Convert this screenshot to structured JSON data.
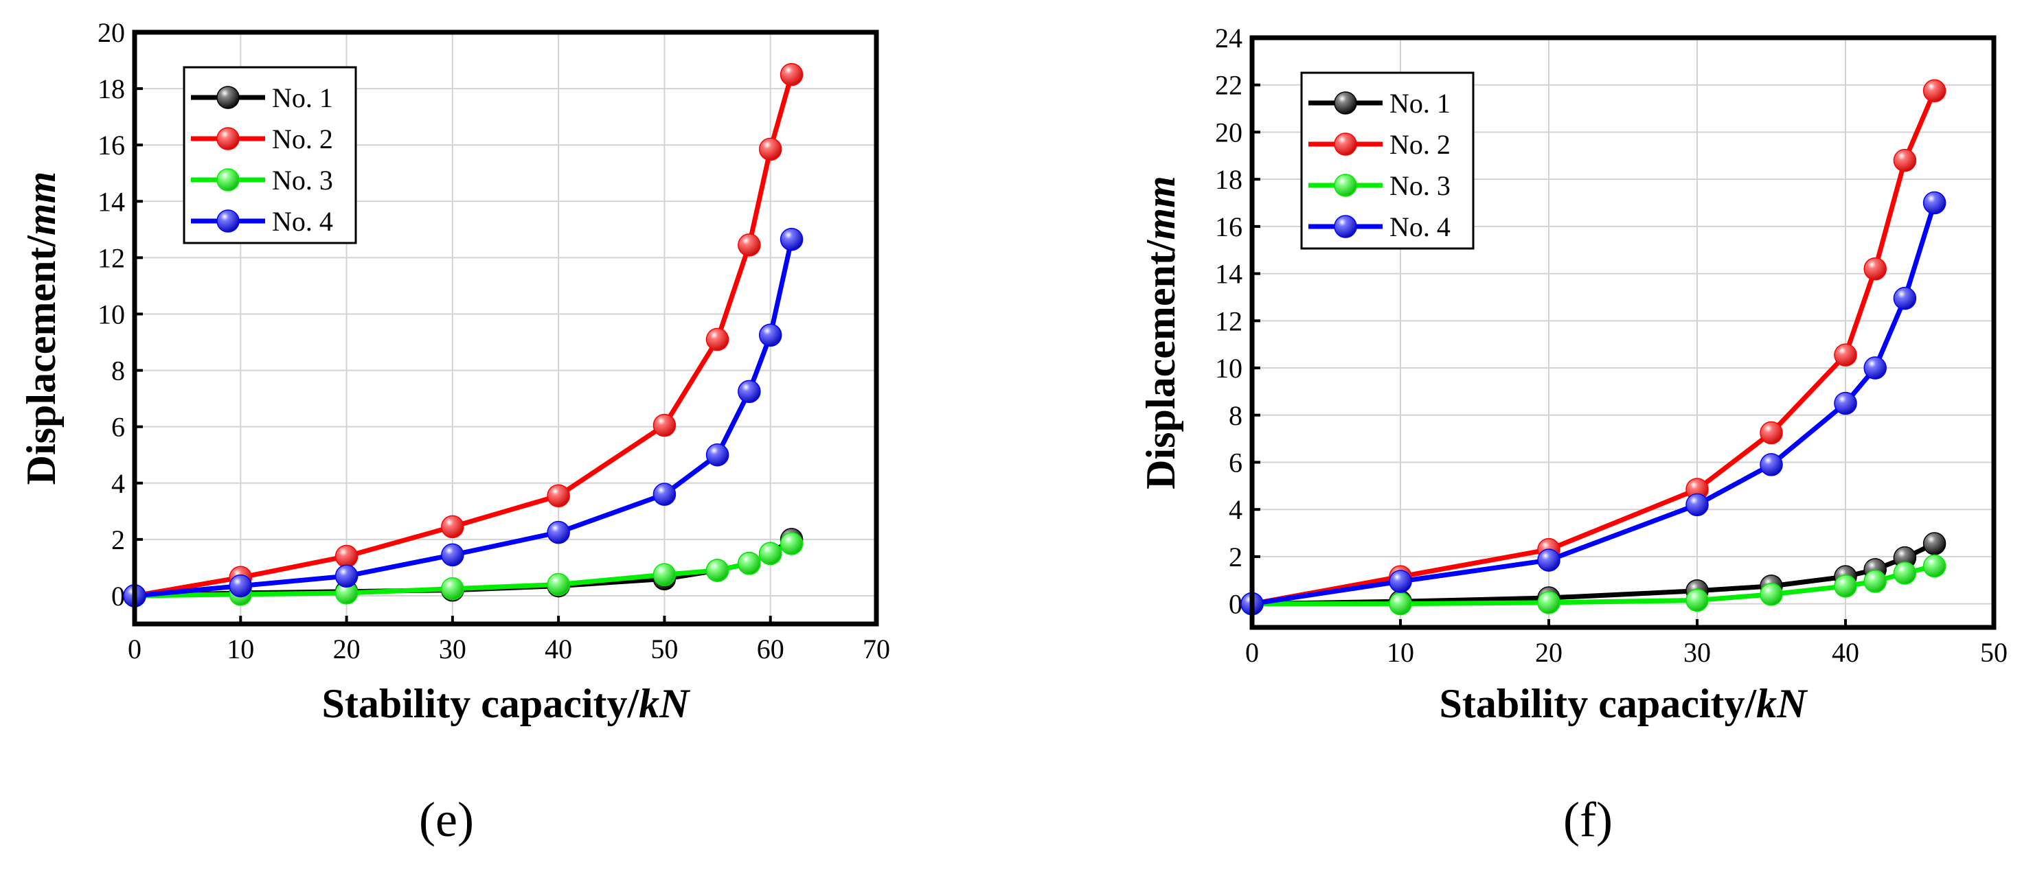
{
  "colors": {
    "No. 1": "#000000",
    "No. 2": "#ff0000",
    "No. 3": "#00ee00",
    "No. 4": "#0000ff"
  },
  "chart_data": [
    {
      "type": "line",
      "panel_label": "(e)",
      "xlabel_prefix": "Stability capacity/",
      "xlabel_unit": "kN",
      "ylabel_prefix": "Displacement/",
      "ylabel_unit": "mm",
      "xlim": [
        0,
        70
      ],
      "ylim": [
        -1,
        20
      ],
      "xticks": [
        0,
        10,
        20,
        30,
        40,
        50,
        60,
        70
      ],
      "yticks": [
        0,
        2,
        4,
        6,
        8,
        10,
        12,
        14,
        16,
        18,
        20
      ],
      "grid": true,
      "legend_position": "top-left",
      "series": [
        {
          "name": "No. 1",
          "x": [
            0,
            10,
            20,
            30,
            40,
            50,
            55,
            58,
            60,
            62
          ],
          "y": [
            0,
            0.1,
            0.15,
            0.2,
            0.35,
            0.6,
            0.9,
            1.15,
            1.5,
            2.0
          ]
        },
        {
          "name": "No. 2",
          "x": [
            0,
            10,
            20,
            30,
            40,
            50,
            55,
            58,
            60,
            62
          ],
          "y": [
            0,
            0.65,
            1.4,
            2.45,
            3.55,
            6.05,
            9.1,
            12.45,
            15.85,
            18.5
          ]
        },
        {
          "name": "No. 3",
          "x": [
            0,
            10,
            20,
            30,
            40,
            50,
            55,
            58,
            60,
            62
          ],
          "y": [
            0,
            0.05,
            0.1,
            0.25,
            0.4,
            0.75,
            0.9,
            1.15,
            1.5,
            1.85
          ]
        },
        {
          "name": "No. 4",
          "x": [
            0,
            10,
            20,
            30,
            40,
            50,
            55,
            58,
            60,
            62
          ],
          "y": [
            0,
            0.35,
            0.7,
            1.45,
            2.25,
            3.6,
            5.0,
            7.25,
            9.25,
            12.65
          ]
        }
      ]
    },
    {
      "type": "line",
      "panel_label": "(f)",
      "xlabel_prefix": "Stability capacity/",
      "xlabel_unit": "kN",
      "ylabel_prefix": "Displacement/",
      "ylabel_unit": "mm",
      "xlim": [
        0,
        50
      ],
      "ylim": [
        -1,
        24
      ],
      "xticks": [
        0,
        10,
        20,
        30,
        40,
        50
      ],
      "yticks": [
        0,
        2,
        4,
        6,
        8,
        10,
        12,
        14,
        16,
        18,
        20,
        22,
        24
      ],
      "grid": true,
      "legend_position": "top-left",
      "series": [
        {
          "name": "No. 1",
          "x": [
            0,
            10,
            20,
            30,
            35,
            40,
            42,
            44,
            46
          ],
          "y": [
            0,
            0.1,
            0.25,
            0.55,
            0.75,
            1.15,
            1.45,
            1.95,
            2.55
          ]
        },
        {
          "name": "No. 2",
          "x": [
            0,
            10,
            20,
            30,
            35,
            40,
            42,
            44,
            46
          ],
          "y": [
            0,
            1.15,
            2.3,
            4.85,
            7.25,
            10.55,
            14.2,
            18.8,
            21.75
          ]
        },
        {
          "name": "No. 3",
          "x": [
            0,
            10,
            20,
            30,
            35,
            40,
            42,
            44,
            46
          ],
          "y": [
            0,
            0,
            0.05,
            0.15,
            0.4,
            0.75,
            0.95,
            1.3,
            1.6
          ]
        },
        {
          "name": "No. 4",
          "x": [
            0,
            10,
            20,
            30,
            35,
            40,
            42,
            44,
            46
          ],
          "y": [
            0,
            0.95,
            1.85,
            4.2,
            5.9,
            8.5,
            10.0,
            12.95,
            17.0
          ]
        }
      ]
    }
  ]
}
